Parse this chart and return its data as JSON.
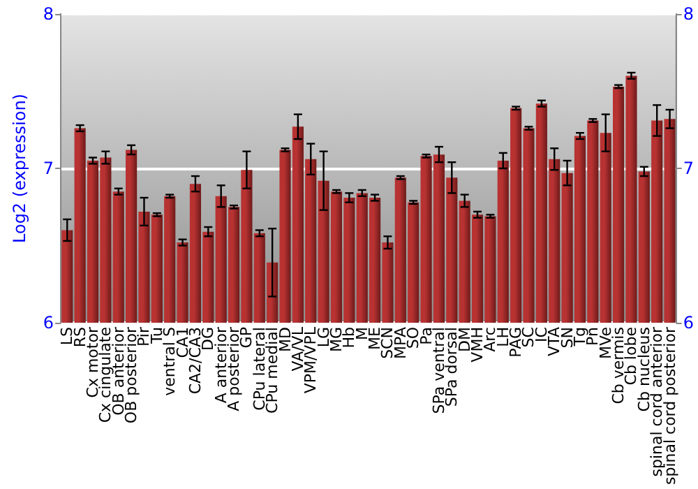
{
  "chart_data": {
    "type": "bar",
    "ylabel": "Log2 (expression)",
    "categories": [
      "LS",
      "RS",
      "Cx motor",
      "Cx cingulate",
      "OB anterior",
      "OB posterior",
      "Pir",
      "Tu",
      "ventral S",
      "CA1",
      "CA2/CA3",
      "DG",
      "A anterior",
      "A posterior",
      "GP",
      "CPu lateral",
      "CPu medial",
      "MD",
      "VA/VL",
      "VPM/VPL",
      "LG",
      "MG",
      "Hb",
      "M",
      "ME",
      "SCN",
      "MPA",
      "SO",
      "Pa",
      "SPa ventral",
      "SPa dorsal",
      "DM",
      "VMH",
      "Arc",
      "LH",
      "PAG",
      "SC",
      "IC",
      "VTA",
      "SN",
      "Tg",
      "Pn",
      "MVe",
      "Cb vermis",
      "Cb lobe",
      "Cb nucleus",
      "spinal cord anterior",
      "spinal cord posterior"
    ],
    "values": [
      6.6,
      7.26,
      7.05,
      7.07,
      6.85,
      7.12,
      6.72,
      6.7,
      6.82,
      6.52,
      6.9,
      6.59,
      6.82,
      6.75,
      6.99,
      6.58,
      6.39,
      7.12,
      7.27,
      7.06,
      6.92,
      6.85,
      6.81,
      6.84,
      6.81,
      6.52,
      6.94,
      6.78,
      7.08,
      7.09,
      6.94,
      6.79,
      6.7,
      6.69,
      7.05,
      7.39,
      7.26,
      7.42,
      7.06,
      6.97,
      7.21,
      7.31,
      7.23,
      7.53,
      7.6,
      6.98,
      7.31,
      7.32
    ],
    "errors": [
      0.07,
      0.02,
      0.02,
      0.04,
      0.02,
      0.03,
      0.09,
      0.01,
      0.01,
      0.02,
      0.05,
      0.03,
      0.07,
      0.01,
      0.12,
      0.02,
      0.22,
      0.01,
      0.08,
      0.1,
      0.19,
      0.01,
      0.03,
      0.02,
      0.02,
      0.04,
      0.01,
      0.01,
      0.01,
      0.05,
      0.1,
      0.04,
      0.02,
      0.01,
      0.05,
      0.01,
      0.01,
      0.02,
      0.07,
      0.08,
      0.02,
      0.01,
      0.12,
      0.01,
      0.02,
      0.03,
      0.1,
      0.06
    ],
    "color": "#b83232",
    "ylim": [
      6,
      8
    ],
    "yticks": [
      6,
      7,
      8
    ],
    "y2lim": [
      6,
      8
    ],
    "y2ticks": [
      6,
      7,
      8
    ],
    "grid": "y"
  }
}
